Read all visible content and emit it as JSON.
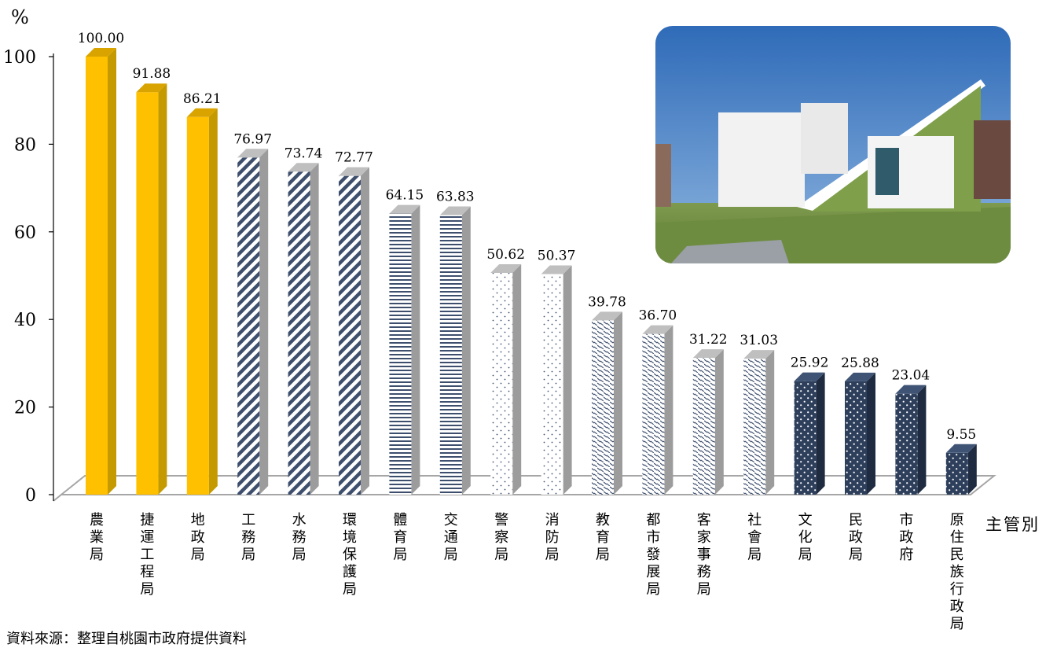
{
  "chart_data": {
    "type": "bar",
    "ylabel": "%",
    "xlabel": "主管別",
    "ylim": [
      0,
      100
    ],
    "yticks": [
      0,
      20,
      40,
      60,
      80,
      100
    ],
    "value_labels": [
      "100.00",
      "91.88",
      "86.21",
      "76.97",
      "73.74",
      "72.77",
      "64.15",
      "63.83",
      "50.62",
      "50.37",
      "39.78",
      "36.70",
      "31.22",
      "31.03",
      "25.92",
      "25.88",
      "23.04",
      "9.55"
    ],
    "categories": [
      "農業局",
      "捷運工程局",
      "地政局",
      "工務局",
      "水務局",
      "環境保護局",
      "體育局",
      "交通局",
      "警察局",
      "消防局",
      "教育局",
      "都市發展局",
      "客家事務局",
      "社會局",
      "文化局",
      "民政局",
      "市政府",
      "原住民族行政局"
    ],
    "values": [
      100.0,
      91.88,
      86.21,
      76.97,
      73.74,
      72.77,
      64.15,
      63.83,
      50.62,
      50.37,
      39.78,
      36.7,
      31.22,
      31.03,
      25.92,
      25.88,
      23.04,
      9.55
    ],
    "fill_patterns": [
      "solid",
      "solid",
      "solid",
      "diagonal",
      "diagonal",
      "diagonal",
      "horizontal",
      "horizontal",
      "dots",
      "dots",
      "dashes",
      "dashes",
      "dashes",
      "dashes",
      "navy-dots",
      "navy-dots",
      "navy-dots",
      "navy-dots"
    ],
    "colors": {
      "gold": "#FFC000",
      "gold_side": "#C49A00",
      "navy": "#2E3F5C",
      "stripe": "#3E4F6E",
      "floor": "#A6A6A6"
    },
    "grid": false
  },
  "footer": {
    "source": "資料來源：整理自桃園市政府提供資料"
  }
}
